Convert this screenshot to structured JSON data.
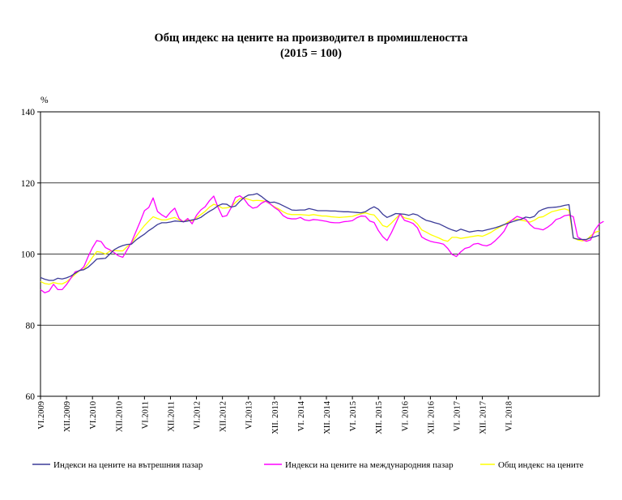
{
  "chart_data": {
    "type": "line",
    "title": "Общ индекс на цените на производител в промишлеността",
    "subtitle": "(2015 = 100)",
    "ylabel": "%",
    "ylim": [
      60,
      140
    ],
    "yticks": [
      60,
      80,
      100,
      120,
      140
    ],
    "grid": "horizontal",
    "legend_position": "bottom",
    "x_tick_labels": [
      "VI.2009",
      "XII.2009",
      "VI.2010",
      "XII.2010",
      "VI.2011",
      "XII.2011",
      "VI.2012",
      "XII.2012",
      "VI.2013",
      "XII. 2013",
      "VI. 2014",
      "XII. 2014",
      "VI. 2015",
      "XII. 2015",
      "VI. 2016",
      "XII. 2016",
      "VI. 2017",
      "XII. 2017",
      "VI. 2018"
    ],
    "series": [
      {
        "name": "Индекси на цените на вътрешния пазар",
        "color": "#3b3b98",
        "values": [
          93.4,
          92.9,
          92.6,
          92.6,
          93.2,
          93.0,
          93.3,
          93.8,
          94.6,
          95.4,
          95.6,
          96.3,
          97.4,
          98.6,
          98.7,
          98.8,
          100.0,
          101.2,
          101.9,
          102.4,
          102.7,
          102.8,
          103.9,
          104.8,
          105.6,
          106.6,
          107.4,
          108.3,
          108.8,
          108.8,
          109.0,
          109.3,
          109.2,
          109.1,
          109.3,
          109.6,
          109.8,
          110.3,
          111.2,
          112.0,
          112.7,
          113.6,
          114.1,
          114.0,
          113.2,
          113.5,
          114.8,
          115.9,
          116.6,
          116.7,
          117.0,
          116.2,
          115.2,
          114.5,
          114.6,
          114.2,
          113.6,
          113.0,
          112.4,
          112.3,
          112.4,
          112.4,
          112.8,
          112.5,
          112.2,
          112.2,
          112.2,
          112.1,
          112.1,
          112.0,
          111.9,
          111.9,
          111.8,
          111.7,
          111.6,
          111.9,
          112.7,
          113.3,
          112.6,
          111.2,
          110.3,
          110.8,
          111.4,
          111.3,
          111.2,
          110.9,
          111.3,
          111.0,
          110.2,
          109.5,
          109.2,
          108.8,
          108.5,
          107.9,
          107.3,
          106.8,
          106.4,
          107.0,
          106.6,
          106.2,
          106.4,
          106.6,
          106.5,
          106.8,
          107.1,
          107.4,
          107.8,
          108.3,
          108.7,
          109.1,
          109.5,
          109.8,
          110.4,
          110.2,
          110.6,
          112.0,
          112.6,
          113.0,
          113.1,
          113.2,
          113.4,
          113.7,
          113.9,
          104.5,
          104.2,
          104.1,
          104.1,
          104.6,
          104.9,
          105.3
        ]
      },
      {
        "name": "Индекси на цените на международния пазар",
        "color": "#ff00ff",
        "values": [
          90.0,
          89.1,
          89.6,
          91.5,
          90.0,
          90.0,
          91.4,
          93.2,
          95.0,
          95.3,
          96.4,
          99.3,
          101.8,
          103.8,
          103.5,
          101.8,
          101.2,
          100.4,
          99.5,
          99.1,
          101.2,
          103.3,
          106.2,
          109.1,
          112.2,
          113.1,
          115.8,
          112.0,
          111.0,
          110.3,
          111.8,
          112.9,
          110.0,
          109.0,
          110.0,
          108.5,
          110.9,
          112.4,
          113.3,
          115.0,
          116.3,
          113.1,
          110.5,
          110.8,
          113.0,
          115.9,
          116.4,
          115.5,
          113.8,
          112.9,
          113.2,
          114.3,
          114.9,
          114.1,
          113.1,
          112.3,
          110.8,
          110.1,
          109.9,
          109.9,
          110.3,
          109.6,
          109.4,
          109.7,
          109.6,
          109.4,
          109.2,
          108.9,
          108.8,
          108.8,
          109.1,
          109.2,
          109.4,
          110.2,
          110.7,
          110.6,
          109.3,
          108.9,
          106.6,
          104.9,
          103.8,
          106.0,
          108.6,
          111.3,
          109.5,
          109.1,
          108.6,
          107.4,
          104.8,
          104.1,
          103.6,
          103.3,
          103.1,
          102.8,
          101.6,
          99.9,
          99.3,
          100.6,
          101.6,
          101.9,
          102.8,
          103.0,
          102.5,
          102.3,
          102.8,
          103.8,
          105.0,
          106.4,
          108.7,
          109.7,
          110.6,
          110.2,
          109.8,
          108.3,
          107.3,
          107.1,
          106.8,
          107.5,
          108.4,
          109.7,
          110.1,
          110.8,
          111.0,
          110.5,
          104.8,
          104.1,
          103.6,
          104.0,
          106.8,
          108.5,
          109.2
        ]
      },
      {
        "name": "Общ индекс на цените",
        "color": "#ffff00",
        "values": [
          92.3,
          91.7,
          91.5,
          92.0,
          91.7,
          91.6,
          92.2,
          93.2,
          94.3,
          95.3,
          95.8,
          97.3,
          99.1,
          100.7,
          100.5,
          100.0,
          100.8,
          101.0,
          100.9,
          100.9,
          102.1,
          103.1,
          104.8,
          106.5,
          108.0,
          109.3,
          110.5,
          110.0,
          109.6,
          109.6,
          110.0,
          110.3,
          109.6,
          109.2,
          109.6,
          109.3,
          110.2,
          111.1,
          112.0,
          113.2,
          114.0,
          113.6,
          112.9,
          113.0,
          113.3,
          114.5,
          115.6,
          115.7,
          115.4,
          115.0,
          115.1,
          115.0,
          114.8,
          114.1,
          113.3,
          112.7,
          111.9,
          111.3,
          111.1,
          111.1,
          111.1,
          111.0,
          110.9,
          111.1,
          110.9,
          110.7,
          110.7,
          110.5,
          110.4,
          110.3,
          110.4,
          110.5,
          110.6,
          111.0,
          111.3,
          111.6,
          111.2,
          111.0,
          109.6,
          108.0,
          107.6,
          108.7,
          110.0,
          111.2,
          110.2,
          109.9,
          109.6,
          108.5,
          106.8,
          106.2,
          105.5,
          105.0,
          104.5,
          103.9,
          103.6,
          104.7,
          104.7,
          104.4,
          104.6,
          104.8,
          105.0,
          105.2,
          105.0,
          105.5,
          106.1,
          106.9,
          107.6,
          108.2,
          109.1,
          109.6,
          109.8,
          109.5,
          109.3,
          109.0,
          109.5,
          110.3,
          110.5,
          111.2,
          111.9,
          112.2,
          112.5,
          112.7,
          112.3,
          104.5,
          104.0,
          103.7,
          103.9,
          105.1,
          106.1,
          106.5
        ]
      }
    ]
  }
}
